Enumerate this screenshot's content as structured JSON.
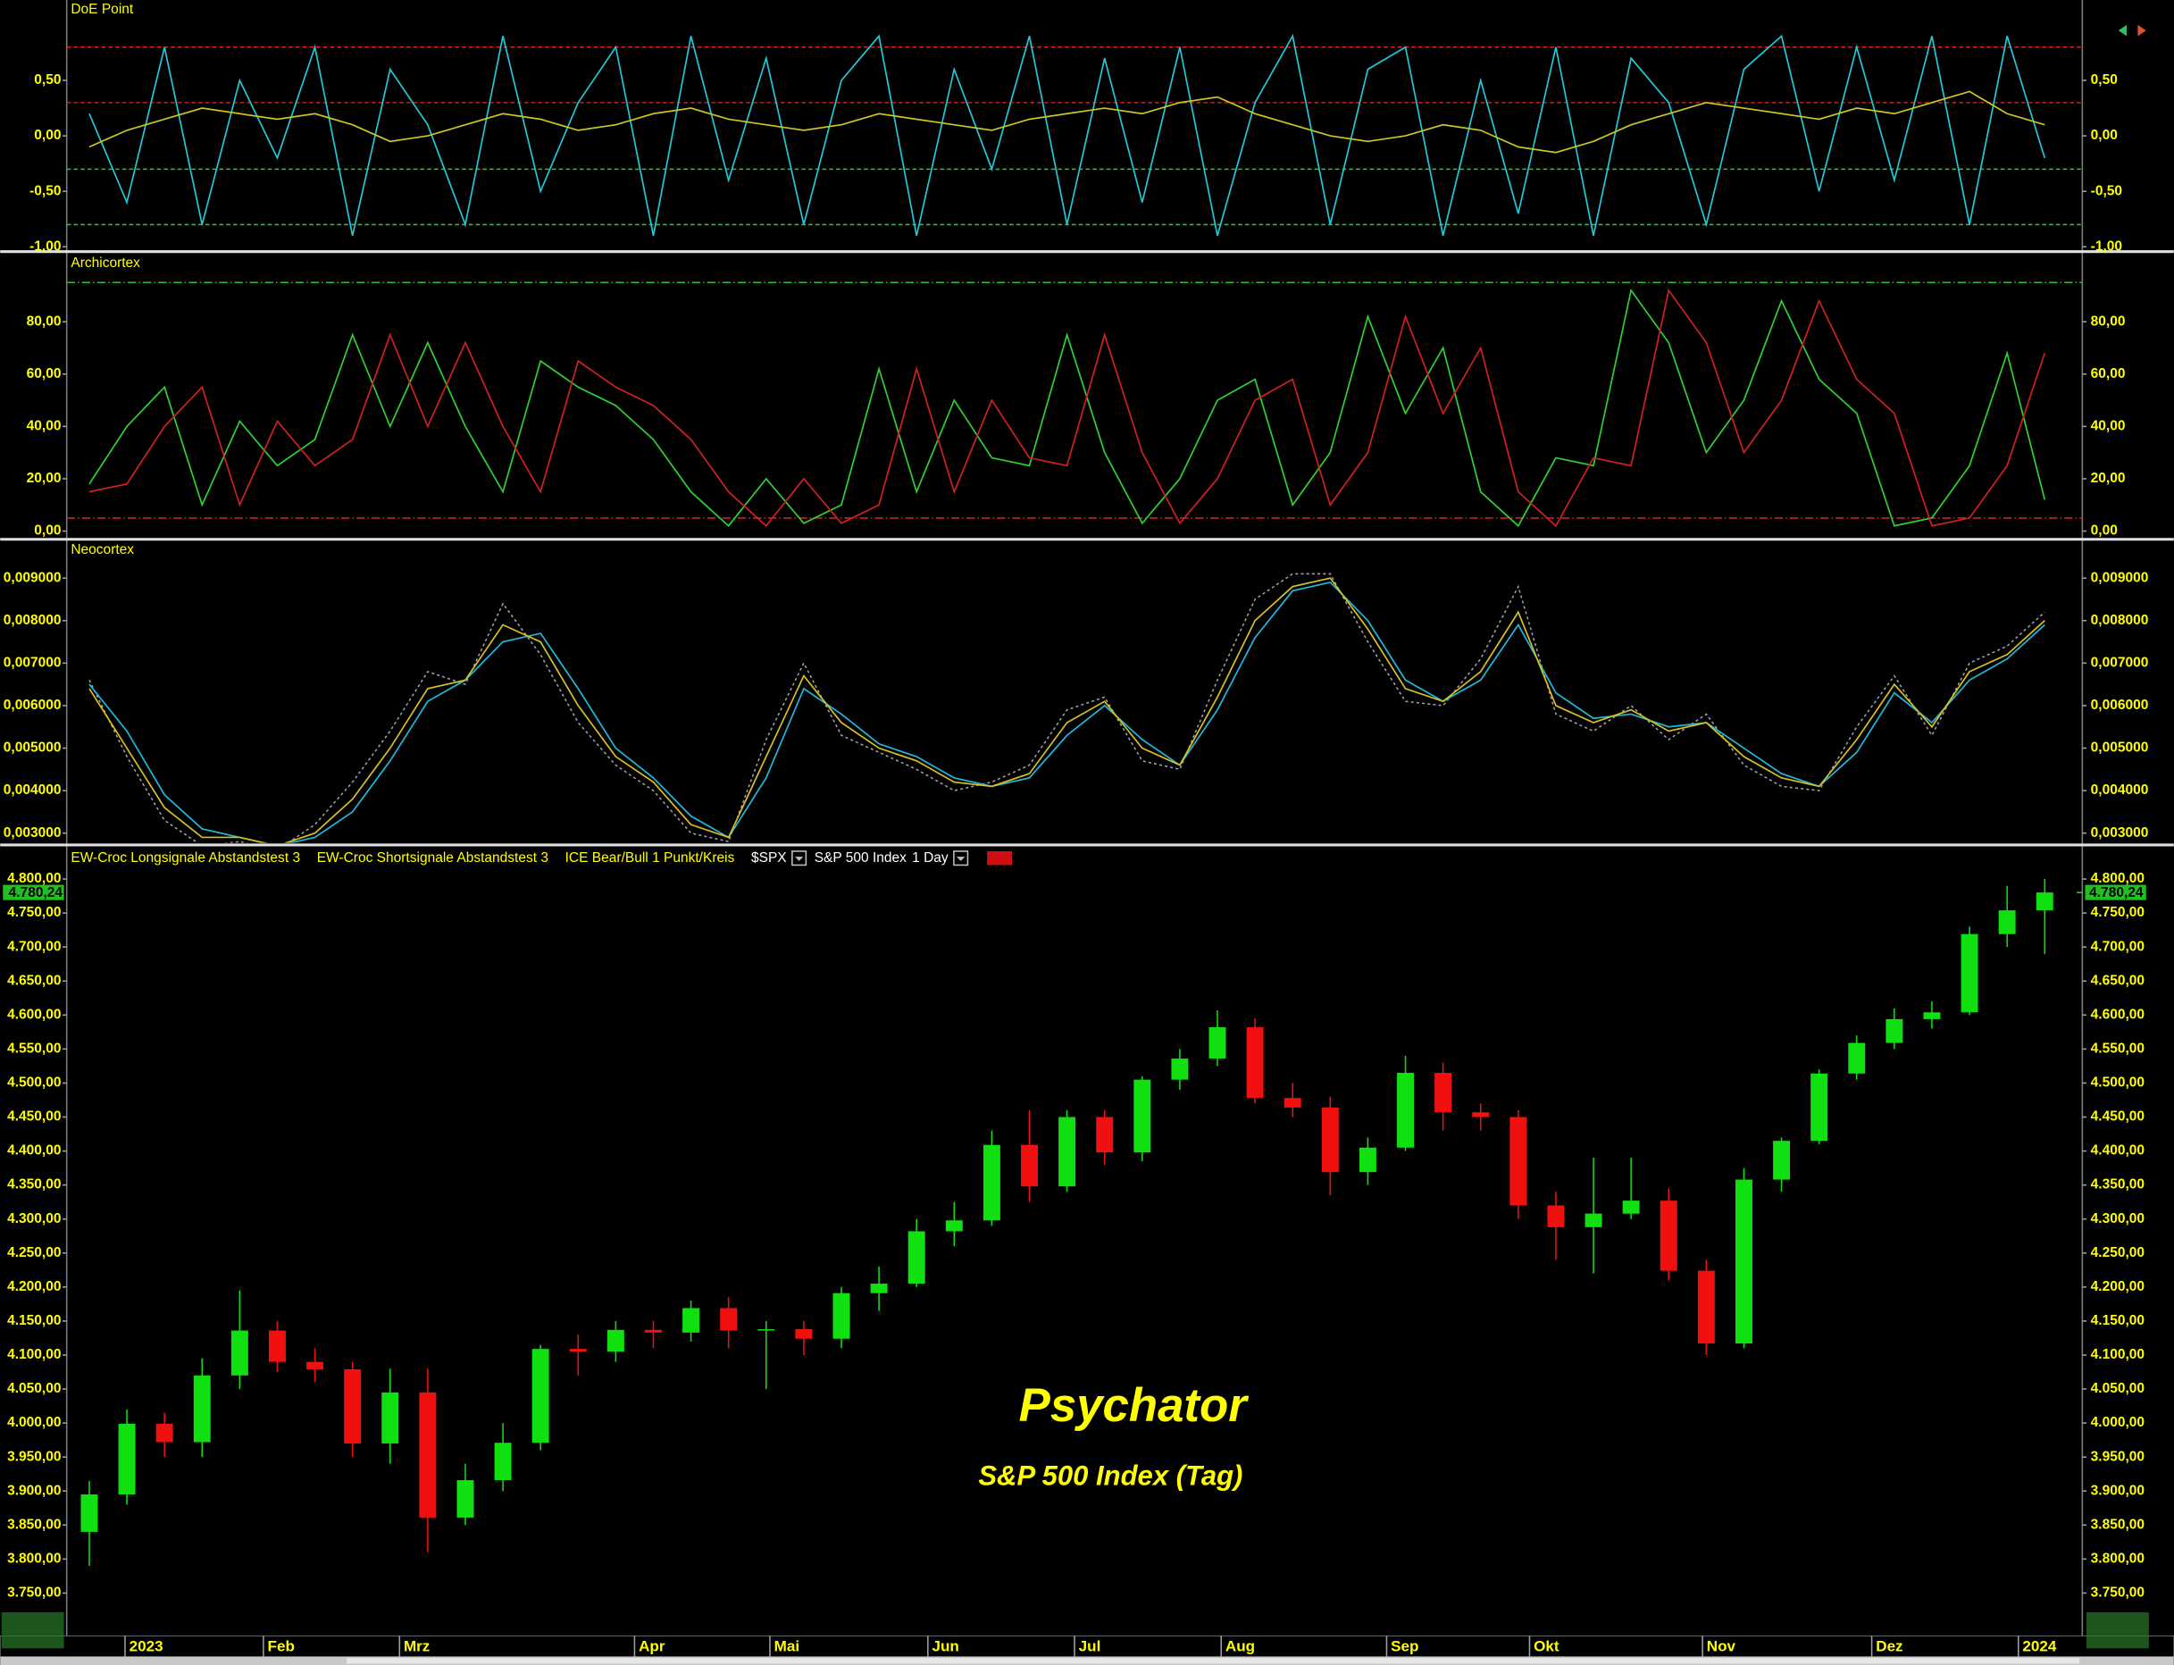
{
  "chart_data": [
    {
      "type": "line",
      "title": "DoE Point",
      "ylim": [
        -1.025,
        1.225
      ],
      "yticks": [
        {
          "value": 0.5,
          "label": "0,50"
        },
        {
          "value": 0,
          "label": "0,00"
        },
        {
          "value": -0.5,
          "label": "-0,50"
        },
        {
          "value": -1,
          "label": "-1,00"
        }
      ],
      "levels": [
        {
          "value": 0.8,
          "color": "#e02020",
          "style": "dashed"
        },
        {
          "value": 0.3,
          "color": "#c02020",
          "style": "dashed"
        },
        {
          "value": -0.3,
          "color": "#30c030",
          "style": "dashed"
        },
        {
          "value": -0.8,
          "color": "#30c030",
          "style": "dashed"
        }
      ],
      "series": [
        {
          "color": "#20c8d8",
          "dashed": false,
          "values": [
            0.2,
            -0.6,
            0.8,
            -0.8,
            0.5,
            -0.2,
            0.8,
            -0.9,
            0.6,
            0.1,
            -0.8,
            0.9,
            -0.5,
            0.3,
            0.8,
            -0.9,
            0.9,
            -0.4,
            0.7,
            -0.8,
            0.5,
            0.9,
            -0.9,
            0.6,
            -0.3,
            0.9,
            -0.8,
            0.7,
            -0.6,
            0.8,
            -0.9,
            0.3,
            0.9,
            -0.8,
            0.6,
            0.8,
            -0.9,
            0.5,
            -0.7,
            0.8,
            -0.9,
            0.7,
            0.3,
            -0.8,
            0.6,
            0.9,
            -0.5,
            0.8,
            -0.4,
            0.9,
            -0.8,
            0.9,
            -0.2
          ]
        },
        {
          "color": "#c8c820",
          "dashed": false,
          "values": [
            -0.1,
            0.05,
            0.15,
            0.25,
            0.2,
            0.15,
            0.2,
            0.1,
            -0.05,
            0,
            0.1,
            0.2,
            0.15,
            0.05,
            0.1,
            0.2,
            0.25,
            0.15,
            0.1,
            0.05,
            0.1,
            0.2,
            0.15,
            0.1,
            0.05,
            0.15,
            0.2,
            0.25,
            0.2,
            0.3,
            0.35,
            0.2,
            0.1,
            0,
            -0.05,
            0,
            0.1,
            0.05,
            -0.1,
            -0.15,
            -0.05,
            0.1,
            0.2,
            0.3,
            0.25,
            0.2,
            0.15,
            0.25,
            0.2,
            0.3,
            0.4,
            0.2,
            0.1
          ]
        }
      ]
    },
    {
      "type": "line",
      "title": "Archicortex",
      "ylim": [
        -2.6,
        106
      ],
      "yticks": [
        {
          "value": 80,
          "label": "80,00"
        },
        {
          "value": 60,
          "label": "60,00"
        },
        {
          "value": 40,
          "label": "40,00"
        },
        {
          "value": 20,
          "label": "20,00"
        },
        {
          "value": 0,
          "label": "0,00"
        }
      ],
      "levels": [
        {
          "value": 95,
          "color": "#30c030",
          "style": "dashdot"
        },
        {
          "value": 5,
          "color": "#d02020",
          "style": "dashdot"
        }
      ],
      "series": [
        {
          "color": "#30d030",
          "dashed": false,
          "values": [
            18,
            40,
            55,
            10,
            42,
            25,
            35,
            75,
            40,
            72,
            40,
            15,
            65,
            55,
            48,
            35,
            15,
            2,
            20,
            3,
            10,
            62,
            15,
            50,
            28,
            25,
            75,
            30,
            3,
            20,
            50,
            58,
            10,
            30,
            82,
            45,
            70,
            15,
            2,
            28,
            25,
            92,
            72,
            30,
            50,
            88,
            58,
            45,
            2,
            5,
            25,
            68,
            12
          ]
        },
        {
          "color": "#d02020",
          "dashed": false,
          "values": [
            15,
            18,
            40,
            55,
            10,
            42,
            25,
            35,
            75,
            40,
            72,
            40,
            15,
            65,
            55,
            48,
            35,
            15,
            2,
            20,
            3,
            10,
            62,
            15,
            50,
            28,
            25,
            75,
            30,
            3,
            20,
            50,
            58,
            10,
            30,
            82,
            45,
            70,
            15,
            2,
            28,
            25,
            92,
            72,
            30,
            50,
            88,
            58,
            45,
            2,
            5,
            25,
            68
          ]
        }
      ]
    },
    {
      "type": "line",
      "title": "Neocortex",
      "ylim": [
        0.00277,
        0.00988
      ],
      "yticks": [
        {
          "value": 0.009,
          "label": "0,009000"
        },
        {
          "value": 0.008,
          "label": "0,008000"
        },
        {
          "value": 0.007,
          "label": "0,007000"
        },
        {
          "value": 0.006,
          "label": "0,006000"
        },
        {
          "value": 0.005,
          "label": "0,005000"
        },
        {
          "value": 0.004,
          "label": "0,004000"
        },
        {
          "value": 0.003,
          "label": "0,003000"
        }
      ],
      "levels": [],
      "series": [
        {
          "color": "#a0a0a0",
          "dashed": true,
          "values": [
            0.0066,
            0.0048,
            0.0033,
            0.0027,
            0.0028,
            0.0026,
            0.0032,
            0.0042,
            0.0054,
            0.0068,
            0.0065,
            0.0084,
            0.0072,
            0.0056,
            0.0046,
            0.004,
            0.003,
            0.0028,
            0.0052,
            0.007,
            0.0053,
            0.0049,
            0.0045,
            0.004,
            0.0042,
            0.0046,
            0.0059,
            0.0062,
            0.0047,
            0.0045,
            0.0066,
            0.0085,
            0.0091,
            0.0091,
            0.0075,
            0.0061,
            0.006,
            0.0071,
            0.0088,
            0.0058,
            0.0054,
            0.006,
            0.0052,
            0.0058,
            0.0046,
            0.0041,
            0.004,
            0.0055,
            0.0067,
            0.0053,
            0.007,
            0.0074,
            0.0082
          ]
        },
        {
          "color": "#20b8d8",
          "dashed": false,
          "values": [
            0.0065,
            0.0054,
            0.0039,
            0.0031,
            0.0029,
            0.0027,
            0.0029,
            0.0035,
            0.0047,
            0.0061,
            0.0066,
            0.0075,
            0.0077,
            0.0064,
            0.005,
            0.0043,
            0.0034,
            0.0029,
            0.0043,
            0.0064,
            0.0058,
            0.0051,
            0.0048,
            0.0043,
            0.0041,
            0.0043,
            0.0053,
            0.006,
            0.0052,
            0.0046,
            0.0059,
            0.0076,
            0.0087,
            0.0089,
            0.008,
            0.0066,
            0.0061,
            0.0066,
            0.0079,
            0.0063,
            0.0057,
            0.0058,
            0.0055,
            0.0056,
            0.005,
            0.0044,
            0.0041,
            0.0049,
            0.0063,
            0.0056,
            0.0066,
            0.0071,
            0.0079
          ]
        },
        {
          "color": "#d8c020",
          "dashed": false,
          "values": [
            0.0064,
            0.005,
            0.0036,
            0.0029,
            0.0029,
            0.0027,
            0.003,
            0.0038,
            0.005,
            0.0064,
            0.0066,
            0.0079,
            0.0075,
            0.006,
            0.0048,
            0.0042,
            0.0032,
            0.0029,
            0.0048,
            0.0067,
            0.0056,
            0.005,
            0.0047,
            0.0042,
            0.0041,
            0.0044,
            0.0056,
            0.0061,
            0.005,
            0.0046,
            0.0062,
            0.008,
            0.0088,
            0.009,
            0.0078,
            0.0064,
            0.0061,
            0.0068,
            0.0082,
            0.006,
            0.0056,
            0.0059,
            0.0054,
            0.0056,
            0.0048,
            0.0043,
            0.0041,
            0.0052,
            0.0065,
            0.0055,
            0.0068,
            0.0072,
            0.008
          ]
        }
      ]
    },
    {
      "type": "candlestick",
      "title": "Psychator",
      "subtitle": "S&P 500 Index (Tag)",
      "legend": [
        "EW-Croc Longsignale Abstandstest 3",
        "EW-Croc Shortsignale Abstandstest 3",
        "ICE Bear/Bull 1 Punkt/Kreis"
      ],
      "symbol": "$SPX",
      "instrument": "S&P 500 Index",
      "interval": "1 Day",
      "up_color": "#10e010",
      "down_color": "#f01010",
      "ylim": [
        3687,
        4847
      ],
      "yticks": [
        {
          "value": 4800,
          "label": "4.800,00"
        },
        {
          "value": 4750,
          "label": "4.750,00"
        },
        {
          "value": 4700,
          "label": "4.700,00"
        },
        {
          "value": 4650,
          "label": "4.650,00"
        },
        {
          "value": 4600,
          "label": "4.600,00"
        },
        {
          "value": 4550,
          "label": "4.550,00"
        },
        {
          "value": 4500,
          "label": "4.500,00"
        },
        {
          "value": 4450,
          "label": "4.450,00"
        },
        {
          "value": 4400,
          "label": "4.400,00"
        },
        {
          "value": 4350,
          "label": "4.350,00"
        },
        {
          "value": 4300,
          "label": "4.300,00"
        },
        {
          "value": 4250,
          "label": "4.250,00"
        },
        {
          "value": 4200,
          "label": "4.200,00"
        },
        {
          "value": 4150,
          "label": "4.150,00"
        },
        {
          "value": 4100,
          "label": "4.100,00"
        },
        {
          "value": 4050,
          "label": "4.050,00"
        },
        {
          "value": 4000,
          "label": "4.000,00"
        },
        {
          "value": 3950,
          "label": "3.950,00"
        },
        {
          "value": 3900,
          "label": "3.900,00"
        },
        {
          "value": 3850,
          "label": "3.850,00"
        },
        {
          "value": 3800,
          "label": "3.800,00"
        },
        {
          "value": 3750,
          "label": "3.750,00"
        }
      ],
      "last_price": {
        "value": 4780.24,
        "label": "4.780,24"
      },
      "xlim": [
        -0.6,
        53
      ],
      "xticks": [
        {
          "value": 0.95,
          "label": "2023"
        },
        {
          "value": 4.63,
          "label": "Feb"
        },
        {
          "value": 8.25,
          "label": "Mrz"
        },
        {
          "value": 14.5,
          "label": "Apr"
        },
        {
          "value": 18.1,
          "label": "Mai"
        },
        {
          "value": 22.3,
          "label": "Jun"
        },
        {
          "value": 26.2,
          "label": "Jul"
        },
        {
          "value": 30.1,
          "label": "Aug"
        },
        {
          "value": 34.5,
          "label": "Sep"
        },
        {
          "value": 38.3,
          "label": "Okt"
        },
        {
          "value": 42.9,
          "label": "Nov"
        },
        {
          "value": 47.4,
          "label": "Dez"
        },
        {
          "value": 51.3,
          "label": "2024"
        }
      ],
      "open": [
        3840,
        3895,
        3999,
        3972,
        4070,
        4136,
        4090,
        4079,
        3970,
        4045,
        3861,
        3916,
        3971,
        4109,
        4105,
        4137,
        4133,
        4169,
        4136,
        4138,
        4124,
        4191,
        4205,
        4282,
        4298,
        4409,
        4348,
        4450,
        4398,
        4505,
        4536,
        4582,
        4478,
        4464,
        4369,
        4405,
        4515,
        4457,
        4450,
        4320,
        4288,
        4308,
        4327,
        4224,
        4117,
        4358,
        4415,
        4514,
        4559,
        4594,
        4604,
        4719,
        4754
      ],
      "high": [
        3915,
        4020,
        4015,
        4095,
        4195,
        4150,
        4110,
        4090,
        4080,
        4080,
        3940,
        4000,
        4115,
        4130,
        4150,
        4150,
        4180,
        4185,
        4150,
        4150,
        4200,
        4230,
        4300,
        4325,
        4430,
        4460,
        4460,
        4460,
        4510,
        4550,
        4607,
        4595,
        4500,
        4480,
        4420,
        4540,
        4530,
        4470,
        4460,
        4340,
        4390,
        4390,
        4345,
        4240,
        4375,
        4420,
        4520,
        4570,
        4610,
        4620,
        4730,
        4790,
        4800
      ],
      "low": [
        3790,
        3880,
        3950,
        3950,
        4050,
        4075,
        4060,
        3950,
        3940,
        3810,
        3850,
        3900,
        3960,
        4070,
        4090,
        4110,
        4120,
        4110,
        4050,
        4100,
        4110,
        4165,
        4200,
        4260,
        4290,
        4325,
        4340,
        4380,
        4385,
        4490,
        4525,
        4470,
        4450,
        4335,
        4350,
        4400,
        4430,
        4430,
        4300,
        4240,
        4220,
        4300,
        4210,
        4100,
        4110,
        4340,
        4410,
        4505,
        4550,
        4580,
        4600,
        4700,
        4690
      ],
      "close": [
        3895,
        3999,
        3972,
        4070,
        4136,
        4090,
        4079,
        3970,
        4045,
        3861,
        3916,
        3971,
        4109,
        4105,
        4137,
        4133,
        4169,
        4136,
        4138,
        4124,
        4191,
        4205,
        4282,
        4298,
        4409,
        4348,
        4450,
        4398,
        4505,
        4536,
        4582,
        4478,
        4464,
        4369,
        4405,
        4515,
        4457,
        4450,
        4320,
        4288,
        4308,
        4327,
        4224,
        4117,
        4358,
        4415,
        4514,
        4559,
        4594,
        4604,
        4719,
        4754,
        4780.24
      ]
    }
  ]
}
